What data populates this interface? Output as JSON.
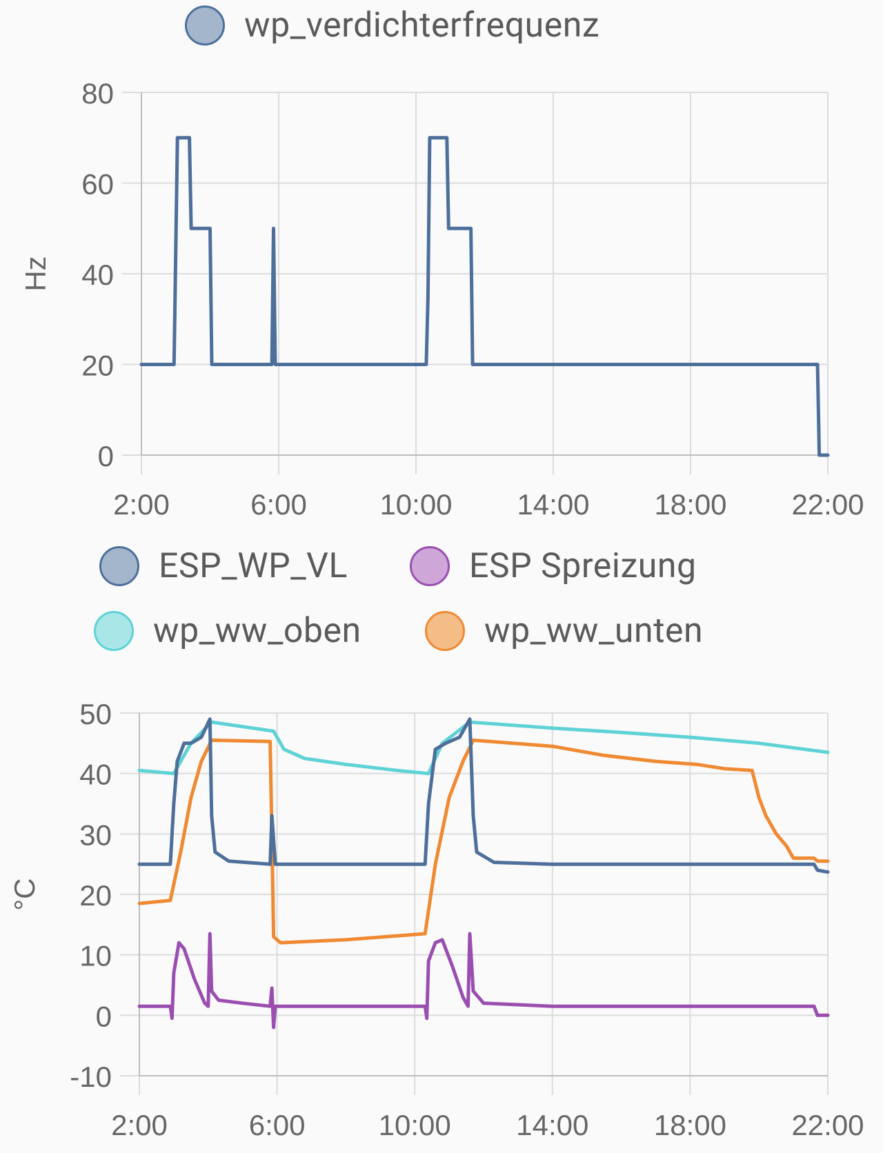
{
  "charts": [
    {
      "legend": [
        {
          "label": "wp_verdichterfrequenz",
          "color": "#4d6f9a",
          "fill": "#a4b6cc"
        }
      ],
      "chart_data": {
        "type": "line",
        "ylabel": "Hz",
        "ylim": [
          0,
          80
        ],
        "yticks": [
          "80",
          "60",
          "40",
          "20",
          "0"
        ],
        "xticks": [
          "2:00",
          "6:00",
          "10:00",
          "14:00",
          "18:00",
          "22:00"
        ],
        "grid": true,
        "series": [
          {
            "name": "wp_verdichterfrequenz",
            "color": "#4d6f9a",
            "points": [
              [
                2.0,
                20
              ],
              [
                2.95,
                20
              ],
              [
                2.98,
                35
              ],
              [
                3.05,
                70
              ],
              [
                3.4,
                70
              ],
              [
                3.45,
                50
              ],
              [
                4.0,
                50
              ],
              [
                4.05,
                20
              ],
              [
                5.8,
                20
              ],
              [
                5.85,
                50
              ],
              [
                5.9,
                20
              ],
              [
                10.3,
                20
              ],
              [
                10.35,
                35
              ],
              [
                10.4,
                70
              ],
              [
                10.9,
                70
              ],
              [
                10.95,
                50
              ],
              [
                11.6,
                50
              ],
              [
                11.65,
                20
              ],
              [
                21.7,
                20
              ],
              [
                21.75,
                0
              ],
              [
                22.0,
                0
              ]
            ]
          }
        ]
      }
    },
    {
      "legend": [
        {
          "label": "ESP_WP_VL",
          "color": "#4d6f9a",
          "fill": "#a4b6cc"
        },
        {
          "label": "ESP Spreizung",
          "color": "#9a4fb0",
          "fill": "#cfa6d8"
        },
        {
          "label": "wp_ww_oben",
          "color": "#5fd2d6",
          "fill": "#a8e6e8"
        },
        {
          "label": "wp_ww_unten",
          "color": "#ef8a33",
          "fill": "#f4bd88"
        }
      ],
      "chart_data": {
        "type": "line",
        "ylabel": "°C",
        "ylim": [
          -10,
          50
        ],
        "yticks": [
          "50",
          "40",
          "30",
          "20",
          "10",
          "0",
          "-10"
        ],
        "xticks": [
          "2:00",
          "6:00",
          "10:00",
          "14:00",
          "18:00",
          "22:00"
        ],
        "grid": true,
        "series": [
          {
            "name": "wp_ww_oben",
            "color": "#5fd2d6",
            "points": [
              [
                2.0,
                40.5
              ],
              [
                3.0,
                40.0
              ],
              [
                3.5,
                45.0
              ],
              [
                4.1,
                48.5
              ],
              [
                5.9,
                47.0
              ],
              [
                6.2,
                44.0
              ],
              [
                6.8,
                42.5
              ],
              [
                8.0,
                41.5
              ],
              [
                9.5,
                40.5
              ],
              [
                10.4,
                40.0
              ],
              [
                10.8,
                45.0
              ],
              [
                11.6,
                48.5
              ],
              [
                14.0,
                47.5
              ],
              [
                16.0,
                46.8
              ],
              [
                18.0,
                46.0
              ],
              [
                20.0,
                45.0
              ],
              [
                22.0,
                43.5
              ]
            ]
          },
          {
            "name": "wp_ww_unten",
            "color": "#ef8a33",
            "points": [
              [
                2.0,
                18.5
              ],
              [
                2.9,
                19.0
              ],
              [
                3.2,
                27.0
              ],
              [
                3.5,
                36.0
              ],
              [
                3.8,
                42.0
              ],
              [
                4.1,
                45.5
              ],
              [
                5.8,
                45.3
              ],
              [
                5.85,
                30.0
              ],
              [
                5.9,
                13.0
              ],
              [
                6.1,
                12.0
              ],
              [
                8.0,
                12.5
              ],
              [
                10.3,
                13.5
              ],
              [
                10.6,
                25.0
              ],
              [
                11.0,
                36.0
              ],
              [
                11.4,
                42.0
              ],
              [
                11.7,
                45.5
              ],
              [
                14.0,
                44.5
              ],
              [
                15.5,
                43.0
              ],
              [
                17.0,
                42.0
              ],
              [
                18.2,
                41.5
              ],
              [
                19.0,
                40.8
              ],
              [
                19.8,
                40.5
              ],
              [
                20.0,
                36.0
              ],
              [
                20.2,
                33.0
              ],
              [
                20.5,
                30.0
              ],
              [
                20.8,
                28.0
              ],
              [
                21.0,
                26.0
              ],
              [
                21.6,
                26.0
              ],
              [
                21.7,
                25.5
              ],
              [
                22.0,
                25.5
              ]
            ]
          },
          {
            "name": "ESP_WP_VL",
            "color": "#4d6f9a",
            "points": [
              [
                2.0,
                25.0
              ],
              [
                2.9,
                25.0
              ],
              [
                3.0,
                35.0
              ],
              [
                3.1,
                42.0
              ],
              [
                3.3,
                45.0
              ],
              [
                3.5,
                45.0
              ],
              [
                3.8,
                46.0
              ],
              [
                4.05,
                49.0
              ],
              [
                4.1,
                33.0
              ],
              [
                4.2,
                27.0
              ],
              [
                4.6,
                25.5
              ],
              [
                5.8,
                25.0
              ],
              [
                5.85,
                33.0
              ],
              [
                5.95,
                25.0
              ],
              [
                8.0,
                25.0
              ],
              [
                10.3,
                25.0
              ],
              [
                10.4,
                35.0
              ],
              [
                10.6,
                44.0
              ],
              [
                10.9,
                45.0
              ],
              [
                11.3,
                46.0
              ],
              [
                11.6,
                49.0
              ],
              [
                11.7,
                33.0
              ],
              [
                11.8,
                27.0
              ],
              [
                12.3,
                25.3
              ],
              [
                14.0,
                25.0
              ],
              [
                18.0,
                25.0
              ],
              [
                21.6,
                25.0
              ],
              [
                21.7,
                24.0
              ],
              [
                22.0,
                23.7
              ]
            ]
          },
          {
            "name": "ESP Spreizung",
            "color": "#9a4fb0",
            "points": [
              [
                2.0,
                1.5
              ],
              [
                2.9,
                1.5
              ],
              [
                2.95,
                -0.5
              ],
              [
                3.0,
                7.0
              ],
              [
                3.15,
                12.0
              ],
              [
                3.3,
                11.0
              ],
              [
                3.6,
                6.0
              ],
              [
                3.9,
                2.0
              ],
              [
                4.0,
                1.5
              ],
              [
                4.05,
                13.5
              ],
              [
                4.1,
                4.0
              ],
              [
                4.3,
                2.5
              ],
              [
                5.0,
                2.0
              ],
              [
                5.8,
                1.5
              ],
              [
                5.85,
                4.5
              ],
              [
                5.9,
                -2.0
              ],
              [
                5.95,
                1.5
              ],
              [
                8.0,
                1.5
              ],
              [
                10.3,
                1.5
              ],
              [
                10.35,
                -0.5
              ],
              [
                10.4,
                9.0
              ],
              [
                10.6,
                12.0
              ],
              [
                10.8,
                12.5
              ],
              [
                11.1,
                8.0
              ],
              [
                11.4,
                3.0
              ],
              [
                11.55,
                1.5
              ],
              [
                11.6,
                13.5
              ],
              [
                11.7,
                4.0
              ],
              [
                12.0,
                2.0
              ],
              [
                14.0,
                1.5
              ],
              [
                18.0,
                1.5
              ],
              [
                21.6,
                1.5
              ],
              [
                21.7,
                0.0
              ],
              [
                22.0,
                0.0
              ]
            ]
          }
        ]
      }
    }
  ]
}
